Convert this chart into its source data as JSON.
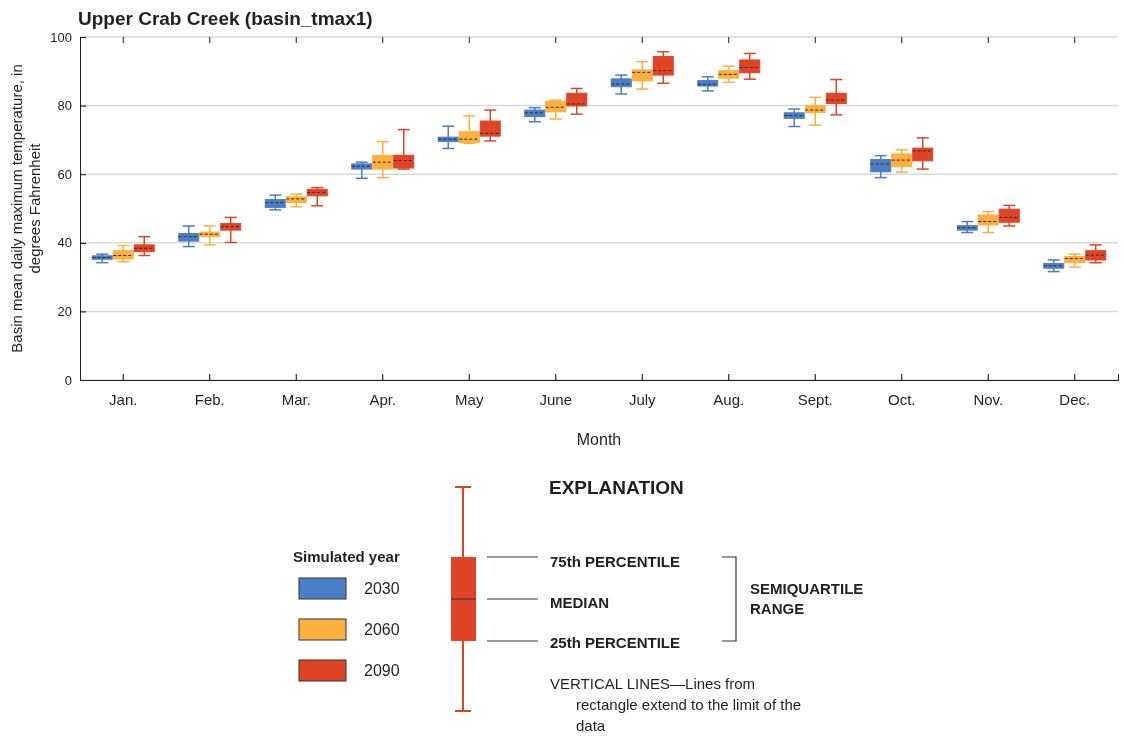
{
  "chart_data": {
    "type": "box",
    "title": "Upper Crab Creek (basin_tmax1)",
    "xlabel": "Month",
    "ylabel": "Basin mean daily maximum temperature, in degrees Fahrenheit",
    "legend_title": "Simulated year",
    "legend": "bottom",
    "grid": "y",
    "categories": [
      "Jan.",
      "Feb.",
      "Mar.",
      "Apr.",
      "May",
      "June",
      "July",
      "Aug.",
      "Sept.",
      "Oct.",
      "Nov.",
      "Dec."
    ],
    "ylim": [
      0,
      100
    ],
    "yticks": [
      0,
      20,
      40,
      60,
      80,
      100
    ],
    "series": [
      {
        "name": "2030",
        "color": "#4a7ec6",
        "boxes": [
          {
            "low": 34.2,
            "q1": 35.2,
            "median": 35.7,
            "q3": 36.2,
            "high": 36.7
          },
          {
            "low": 38.9,
            "q1": 40.5,
            "median": 41.8,
            "q3": 42.7,
            "high": 44.9
          },
          {
            "low": 49.6,
            "q1": 50.3,
            "median": 51.7,
            "q3": 52.6,
            "high": 53.9
          },
          {
            "low": 58.8,
            "q1": 61.5,
            "median": 62.3,
            "q3": 63,
            "high": 63.5
          },
          {
            "low": 67.5,
            "q1": 69.5,
            "median": 70.2,
            "q3": 70.8,
            "high": 74
          },
          {
            "low": 75.3,
            "q1": 76.8,
            "median": 77.9,
            "q3": 78.7,
            "high": 79.4
          },
          {
            "low": 83.4,
            "q1": 85.5,
            "median": 86.3,
            "q3": 87.8,
            "high": 88.9
          },
          {
            "low": 84.3,
            "q1": 85.7,
            "median": 86.2,
            "q3": 87.3,
            "high": 88.4
          },
          {
            "low": 73.9,
            "q1": 76.3,
            "median": 77.1,
            "q3": 77.9,
            "high": 79
          },
          {
            "low": 59,
            "q1": 60.7,
            "median": 63,
            "q3": 64.3,
            "high": 65.4
          },
          {
            "low": 43,
            "q1": 43.7,
            "median": 44.4,
            "q3": 45,
            "high": 46.2
          },
          {
            "low": 31.6,
            "q1": 32.6,
            "median": 33.3,
            "q3": 34,
            "high": 35
          }
        ]
      },
      {
        "name": "2060",
        "color": "#fbb040",
        "boxes": [
          {
            "low": 34.5,
            "q1": 35.3,
            "median": 36.3,
            "q3": 37.7,
            "high": 39.2
          },
          {
            "low": 39.4,
            "q1": 41.8,
            "median": 42.5,
            "q3": 43.1,
            "high": 44.9
          },
          {
            "low": 50.5,
            "q1": 51.7,
            "median": 52.8,
            "q3": 53.4,
            "high": 54.2
          },
          {
            "low": 59,
            "q1": 61.5,
            "median": 63.5,
            "q3": 65.5,
            "high": 69.5
          },
          {
            "low": 69,
            "q1": 69.2,
            "median": 70.2,
            "q3": 72.4,
            "high": 77
          },
          {
            "low": 76.1,
            "q1": 78.2,
            "median": 79.5,
            "q3": 81.3,
            "high": 81.6
          },
          {
            "low": 84.8,
            "q1": 87.2,
            "median": 89.7,
            "q3": 90.4,
            "high": 92.8
          },
          {
            "low": 86.8,
            "q1": 88,
            "median": 89.1,
            "q3": 90.2,
            "high": 91.5
          },
          {
            "low": 74.3,
            "q1": 78,
            "median": 78.7,
            "q3": 80,
            "high": 82.4
          },
          {
            "low": 60.6,
            "q1": 62.2,
            "median": 64.1,
            "q3": 65.9,
            "high": 67.1
          },
          {
            "low": 43,
            "q1": 45.2,
            "median": 46.2,
            "q3": 48.1,
            "high": 49.1
          },
          {
            "low": 32.9,
            "q1": 34.2,
            "median": 35.4,
            "q3": 36,
            "high": 36.7
          }
        ]
      },
      {
        "name": "2090",
        "color": "#e04426",
        "boxes": [
          {
            "low": 36.3,
            "q1": 37.4,
            "median": 38.4,
            "q3": 39.4,
            "high": 41.8
          },
          {
            "low": 40.1,
            "q1": 43.7,
            "median": 44.7,
            "q3": 45.6,
            "high": 47.4
          },
          {
            "low": 50.8,
            "q1": 53.7,
            "median": 54.7,
            "q3": 55.6,
            "high": 56.1
          },
          {
            "low": 61.5,
            "q1": 61.8,
            "median": 64,
            "q3": 65.5,
            "high": 73
          },
          {
            "low": 69.7,
            "q1": 71.1,
            "median": 71.9,
            "q3": 75.5,
            "high": 78.7
          },
          {
            "low": 77.5,
            "q1": 79.9,
            "median": 80.5,
            "q3": 83.6,
            "high": 85
          },
          {
            "low": 86.5,
            "q1": 88.9,
            "median": 90.2,
            "q3": 94.3,
            "high": 95.7
          },
          {
            "low": 87.7,
            "q1": 89.6,
            "median": 91.1,
            "q3": 93.3,
            "high": 95.2
          },
          {
            "low": 77.3,
            "q1": 80.6,
            "median": 81.6,
            "q3": 83.6,
            "high": 87.6
          },
          {
            "low": 61.5,
            "q1": 63.9,
            "median": 66.8,
            "q3": 67.6,
            "high": 70.6
          },
          {
            "low": 44.9,
            "q1": 46,
            "median": 47.4,
            "q3": 49.8,
            "high": 50.9
          },
          {
            "low": 34.2,
            "q1": 35,
            "median": 36.4,
            "q3": 37.7,
            "high": 39.4
          }
        ]
      }
    ],
    "annotations": [
      "EXPLANATION",
      "75th PERCENTILE",
      "MEDIAN",
      "25th PERCENTILE",
      "SEMIQUARTILE RANGE",
      "VERTICAL LINES—Lines from rectangle extend to the limit of the data"
    ]
  }
}
